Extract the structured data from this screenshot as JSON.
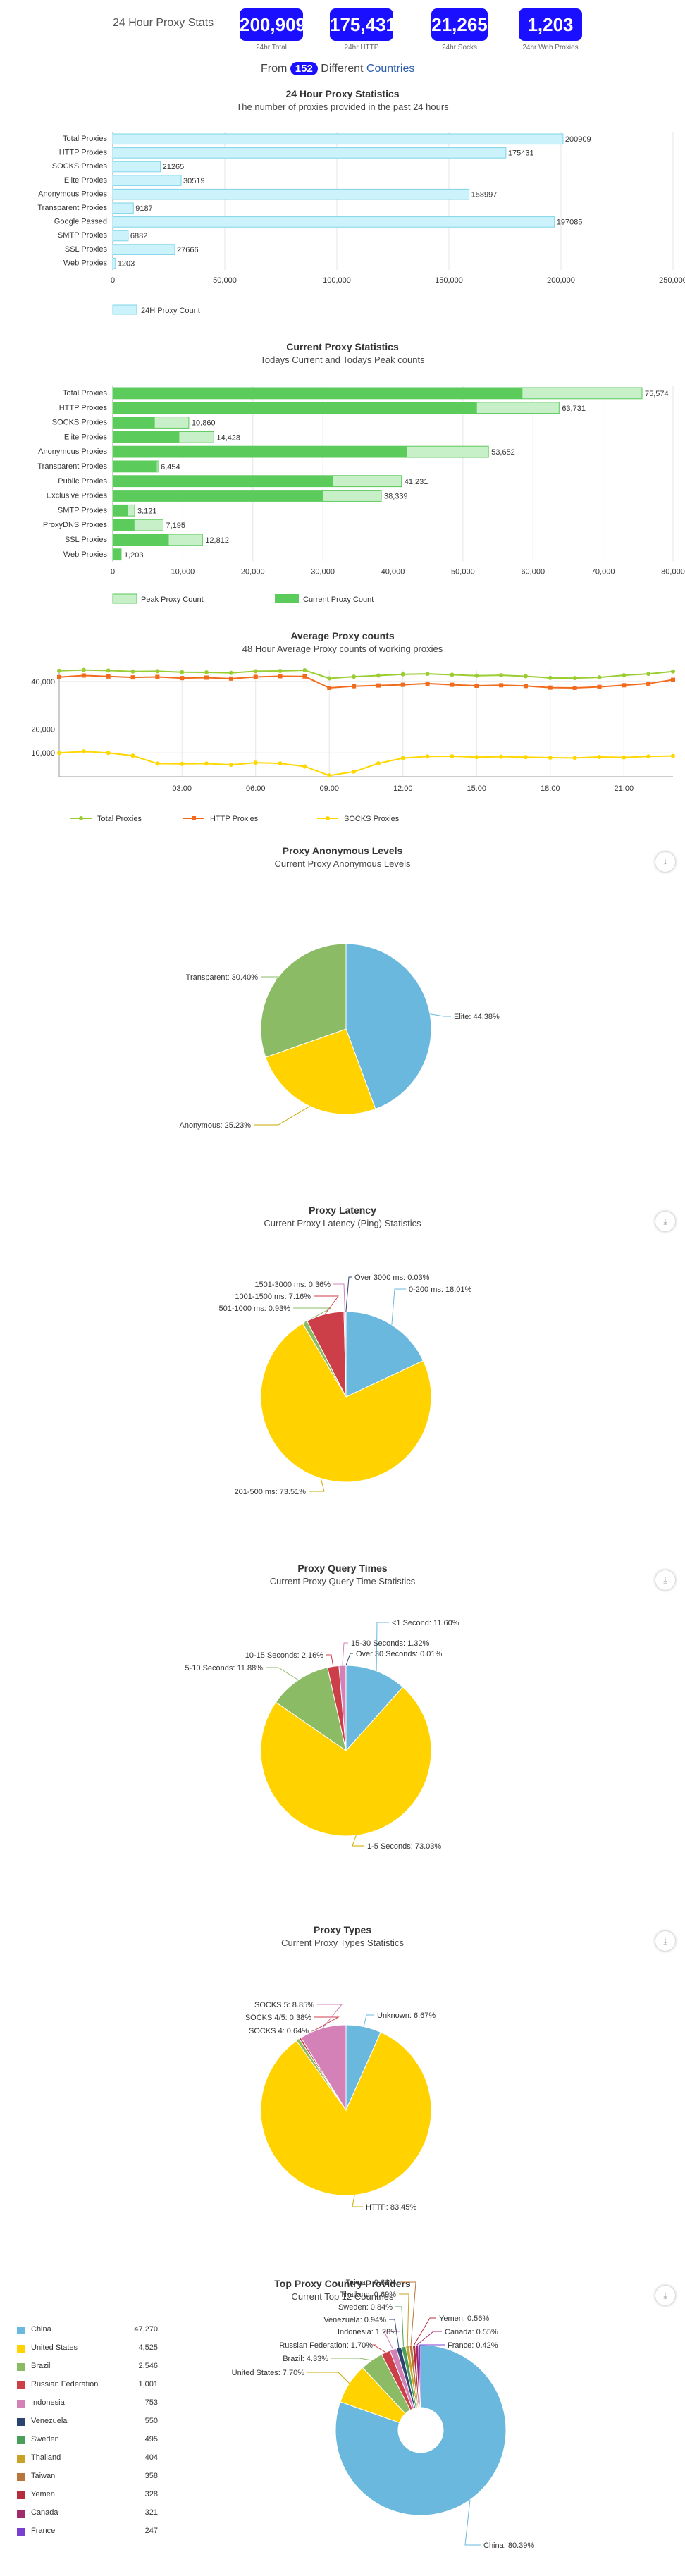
{
  "header": {
    "title": "24 Hour Proxy Stats",
    "stats": [
      {
        "value": "200,909",
        "caption": "24hr Total"
      },
      {
        "value": "175,431",
        "caption": "24hr HTTP"
      },
      {
        "value": "21,265",
        "caption": "24hr Socks"
      },
      {
        "value": "1,203",
        "caption": "24hr Web Proxies"
      }
    ],
    "from_prefix": "From",
    "country_count": "152",
    "from_middle": "Different",
    "countries_link": "Countries"
  },
  "chart_data": [
    {
      "type": "bar",
      "title": "24 Hour Proxy Statistics",
      "subtitle": "The number of proxies provided in the past 24 hours",
      "categories": [
        "Total Proxies",
        "HTTP Proxies",
        "SOCKS Proxies",
        "Elite Proxies",
        "Anonymous Proxies",
        "Transparent Proxies",
        "Google Passed",
        "SMTP Proxies",
        "SSL Proxies",
        "Web Proxies"
      ],
      "series": [
        {
          "name": "24H Proxy Count",
          "values": [
            200909,
            175431,
            21265,
            30519,
            158997,
            9187,
            197085,
            6882,
            27666,
            1203
          ]
        }
      ],
      "data_labels": [
        "200909",
        "175431",
        "21265",
        "30519",
        "158997",
        "9187",
        "197085",
        "6882",
        "27666",
        "1203"
      ],
      "xlim": [
        0,
        250000
      ],
      "xticks": [
        "0",
        "50,000",
        "100,000",
        "150,000",
        "200,000",
        "250,000"
      ],
      "colors": {
        "fill": "#ccf3fb",
        "stroke": "#7dd4e8"
      }
    },
    {
      "type": "bar",
      "title": "Current Proxy Statistics",
      "subtitle": "Todays Current and Todays Peak counts",
      "categories": [
        "Total Proxies",
        "HTTP Proxies",
        "SOCKS Proxies",
        "Elite Proxies",
        "Anonymous Proxies",
        "Transparent Proxies",
        "Public Proxies",
        "Exclusive Proxies",
        "SMTP Proxies",
        "ProxyDNS Proxies",
        "SSL Proxies",
        "Web Proxies"
      ],
      "series": [
        {
          "name": "Peak Proxy Count",
          "values": [
            75574,
            63731,
            10860,
            14428,
            53652,
            6454,
            41231,
            38339,
            3121,
            7195,
            12812,
            1203
          ]
        },
        {
          "name": "Current Proxy Count",
          "values": [
            58500,
            52000,
            6000,
            9500,
            42000,
            6300,
            31500,
            30000,
            2200,
            3100,
            8000,
            1203
          ]
        }
      ],
      "data_labels": [
        "75,574",
        "63,731",
        "10,860",
        "14,428",
        "53,652",
        "6,454",
        "41,231",
        "38,339",
        "3,121",
        "7,195",
        "12,812",
        "1,203"
      ],
      "xlim": [
        0,
        80000
      ],
      "xticks": [
        "0",
        "10,000",
        "20,000",
        "30,000",
        "40,000",
        "50,000",
        "60,000",
        "70,000",
        "80,000"
      ],
      "colors": {
        "peak_fill": "#c8f0c8",
        "peak_stroke": "#5bc85b",
        "current": "#5bcc5b"
      }
    },
    {
      "type": "line",
      "title": "Average Proxy counts",
      "subtitle": "48 Hour Average Proxy counts of working proxies",
      "x": [
        "22:00",
        "23:00",
        "00:00",
        "01:00",
        "02:00",
        "03:00",
        "04:00",
        "05:00",
        "06:00",
        "07:00",
        "08:00",
        "09:00",
        "10:00",
        "11:00",
        "12:00",
        "13:00",
        "14:00",
        "15:00",
        "16:00",
        "17:00",
        "18:00",
        "19:00",
        "20:00",
        "21:00",
        "22:00",
        "23:00"
      ],
      "xticks": [
        "03:00",
        "06:00",
        "09:00",
        "12:00",
        "15:00",
        "18:00",
        "21:00"
      ],
      "ylim": [
        0,
        45000
      ],
      "yticks": [
        "10,000",
        "20,000",
        "40,000"
      ],
      "series": [
        {
          "name": "Total Proxies",
          "color": "#9acd32",
          "values": [
            44500,
            44800,
            44600,
            44200,
            44300,
            43900,
            43800,
            43600,
            44300,
            44400,
            44700,
            41300,
            42000,
            42500,
            43000,
            43200,
            42800,
            42400,
            42600,
            42200,
            41500,
            41400,
            41700,
            42600,
            43200,
            44200
          ]
        },
        {
          "name": "HTTP Proxies",
          "color": "#f26b1d",
          "values": [
            41800,
            42500,
            42100,
            41700,
            41900,
            41400,
            41600,
            41200,
            41900,
            42200,
            42100,
            37300,
            38000,
            38300,
            38600,
            39100,
            38600,
            38200,
            38400,
            38100,
            37400,
            37300,
            37700,
            38400,
            39100,
            40700
          ]
        },
        {
          "name": "SOCKS Proxies",
          "color": "#ffd700",
          "values": [
            10000,
            10600,
            10000,
            8800,
            5500,
            5400,
            5500,
            5000,
            5900,
            5600,
            4300,
            500,
            2100,
            5600,
            7800,
            8500,
            8600,
            8200,
            8400,
            8200,
            8000,
            7900,
            8300,
            8100,
            8500,
            8700
          ]
        }
      ]
    },
    {
      "type": "pie",
      "title": "Proxy Anonymous Levels",
      "subtitle": "Current Proxy Anonymous Levels",
      "slices": [
        {
          "label": "Elite: 44.38%",
          "value": 44.38,
          "color": "#6ab8de"
        },
        {
          "label": "Anonymous: 25.23%",
          "value": 25.23,
          "color": "#ffd200"
        },
        {
          "label": "Transparent: 30.40%",
          "value": 30.4,
          "color": "#8bbb64"
        }
      ]
    },
    {
      "type": "pie",
      "title": "Proxy Latency",
      "subtitle": "Current Proxy Latency (Ping) Statistics",
      "slices": [
        {
          "label": "0-200 ms: 18.01%",
          "value": 18.01,
          "color": "#6ab8de"
        },
        {
          "label": "201-500 ms: 73.51%",
          "value": 73.51,
          "color": "#ffd200"
        },
        {
          "label": "501-1000 ms: 0.93%",
          "value": 0.93,
          "color": "#8bbb64"
        },
        {
          "label": "1001-1500 ms: 7.16%",
          "value": 7.16,
          "color": "#cc3f48"
        },
        {
          "label": "1501-3000 ms: 0.36%",
          "value": 0.36,
          "color": "#d481b8"
        },
        {
          "label": "Over 3000 ms: 0.03%",
          "value": 0.03,
          "color": "#2c4370"
        }
      ]
    },
    {
      "type": "pie",
      "title": "Proxy Query Times",
      "subtitle": "Current Proxy Query Time Statistics",
      "slices": [
        {
          "label": "<1 Second: 11.60%",
          "value": 11.6,
          "color": "#6ab8de"
        },
        {
          "label": "1-5 Seconds: 73.03%",
          "value": 73.03,
          "color": "#ffd200"
        },
        {
          "label": "5-10 Seconds: 11.88%",
          "value": 11.88,
          "color": "#8bbb64"
        },
        {
          "label": "10-15 Seconds: 2.16%",
          "value": 2.16,
          "color": "#cc3f48"
        },
        {
          "label": "15-30 Seconds: 1.32%",
          "value": 1.32,
          "color": "#d481b8"
        },
        {
          "label": "Over 30 Seconds: 0.01%",
          "value": 0.01,
          "color": "#2c4370"
        }
      ]
    },
    {
      "type": "pie",
      "title": "Proxy Types",
      "subtitle": "Current Proxy Types Statistics",
      "slices": [
        {
          "label": "Unknown: 6.67%",
          "value": 6.67,
          "color": "#6ab8de"
        },
        {
          "label": "HTTP: 83.45%",
          "value": 83.45,
          "color": "#ffd200"
        },
        {
          "label": "SOCKS 4: 0.64%",
          "value": 0.64,
          "color": "#8bbb64"
        },
        {
          "label": "SOCKS 4/5: 0.38%",
          "value": 0.38,
          "color": "#cc3f48"
        },
        {
          "label": "SOCKS 5: 8.85%",
          "value": 8.85,
          "color": "#d481b8"
        }
      ]
    },
    {
      "type": "pie",
      "donut": true,
      "title": "Top Proxy Country Providers",
      "subtitle": "Current Top 12 Countries",
      "slices": [
        {
          "label": "China: 80.39%",
          "value": 80.39,
          "color": "#6ab8de"
        },
        {
          "label": "United States: 7.70%",
          "value": 7.7,
          "color": "#ffd200"
        },
        {
          "label": "Brazil: 4.33%",
          "value": 4.33,
          "color": "#8bbb64"
        },
        {
          "label": "Russian Federation: 1.70%",
          "value": 1.7,
          "color": "#cc3f48"
        },
        {
          "label": "Indonesia: 1.28%",
          "value": 1.28,
          "color": "#d481b8"
        },
        {
          "label": "Venezuela: 0.94%",
          "value": 0.94,
          "color": "#2c4370"
        },
        {
          "label": "Sweden: 0.84%",
          "value": 0.84,
          "color": "#4aa05a"
        },
        {
          "label": "Thailand: 0.69%",
          "value": 0.69,
          "color": "#c9a227"
        },
        {
          "label": "Taiwan: 0.61%",
          "value": 0.61,
          "color": "#b8763e"
        },
        {
          "label": "Yemen: 0.56%",
          "value": 0.56,
          "color": "#b52c3c"
        },
        {
          "label": "Canada: 0.55%",
          "value": 0.55,
          "color": "#a02a6a"
        },
        {
          "label": "France: 0.42%",
          "value": 0.42,
          "color": "#7a3fd0"
        }
      ]
    }
  ],
  "country_table": [
    {
      "name": "China",
      "count": "47,270",
      "color": "#6ab8de"
    },
    {
      "name": "United States",
      "count": "4,525",
      "color": "#ffd200"
    },
    {
      "name": "Brazil",
      "count": "2,546",
      "color": "#8bbb64"
    },
    {
      "name": "Russian Federation",
      "count": "1,001",
      "color": "#cc3f48"
    },
    {
      "name": "Indonesia",
      "count": "753",
      "color": "#d481b8"
    },
    {
      "name": "Venezuela",
      "count": "550",
      "color": "#2c4370"
    },
    {
      "name": "Sweden",
      "count": "495",
      "color": "#4aa05a"
    },
    {
      "name": "Thailand",
      "count": "404",
      "color": "#c9a227"
    },
    {
      "name": "Taiwan",
      "count": "358",
      "color": "#b8763e"
    },
    {
      "name": "Yemen",
      "count": "328",
      "color": "#b52c3c"
    },
    {
      "name": "Canada",
      "count": "321",
      "color": "#a02a6a"
    },
    {
      "name": "France",
      "count": "247",
      "color": "#7a3fd0"
    }
  ],
  "download_icon": "download-icon"
}
